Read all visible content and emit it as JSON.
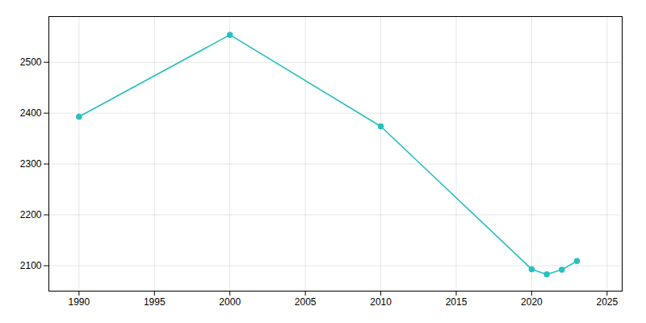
{
  "chart_data": {
    "type": "line",
    "x": [
      1990,
      2000,
      2010,
      2020,
      2021,
      2022,
      2023
    ],
    "values": [
      2393,
      2554,
      2374,
      2093,
      2083,
      2092,
      2109
    ],
    "color": "#28BFBF",
    "marker": "circle",
    "xlim": [
      1988,
      2026
    ],
    "ylim": [
      2050,
      2590
    ],
    "xticks": [
      1990,
      1995,
      2000,
      2005,
      2010,
      2015,
      2020,
      2025
    ],
    "yticks": [
      2100,
      2200,
      2300,
      2400,
      2500
    ],
    "grid": true
  }
}
